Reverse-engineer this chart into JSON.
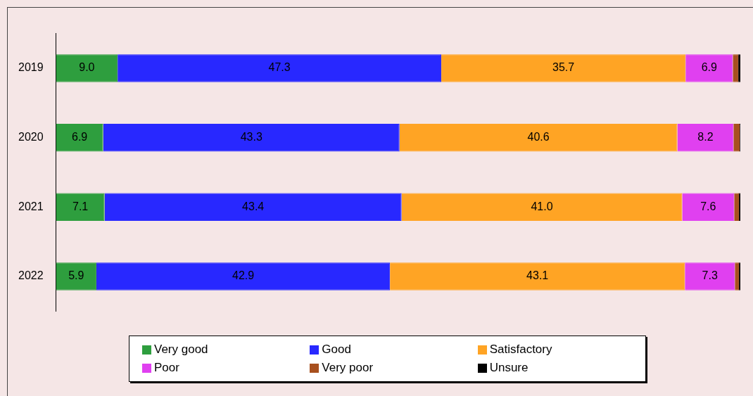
{
  "chart_data": {
    "type": "bar",
    "orientation": "horizontal",
    "stacked": true,
    "categories": [
      "2019",
      "2020",
      "2021",
      "2022"
    ],
    "xlim": [
      0,
      100
    ],
    "tick_labels": "y",
    "legend": "bottom",
    "series": [
      {
        "name": "Very good",
        "color": "#2e9e3e",
        "values": [
          9.0,
          6.9,
          7.1,
          5.9
        ],
        "value_labels": [
          "9.0",
          "6.9",
          "7.1",
          "5.9"
        ]
      },
      {
        "name": "Good",
        "color": "#2828ff",
        "values": [
          47.3,
          43.3,
          43.4,
          42.9
        ],
        "value_labels": [
          "47.3",
          "43.3",
          "43.4",
          "42.9"
        ]
      },
      {
        "name": "Satisfactory",
        "color": "#ffa424",
        "values": [
          35.7,
          40.6,
          41.0,
          43.1
        ],
        "value_labels": [
          "35.7",
          "40.6",
          "41.0",
          "43.1"
        ]
      },
      {
        "name": "Poor",
        "color": "#e040f0",
        "values": [
          6.9,
          8.2,
          7.6,
          7.3
        ],
        "value_labels": [
          "6.9",
          "8.2",
          "7.6",
          "7.3"
        ]
      },
      {
        "name": "Very poor",
        "color": "#a8501e",
        "values": [
          0.8,
          0.9,
          0.7,
          0.6
        ]
      },
      {
        "name": "Unsure",
        "color": "#000000",
        "values": [
          0.3,
          0.1,
          0.2,
          0.2
        ]
      }
    ]
  }
}
